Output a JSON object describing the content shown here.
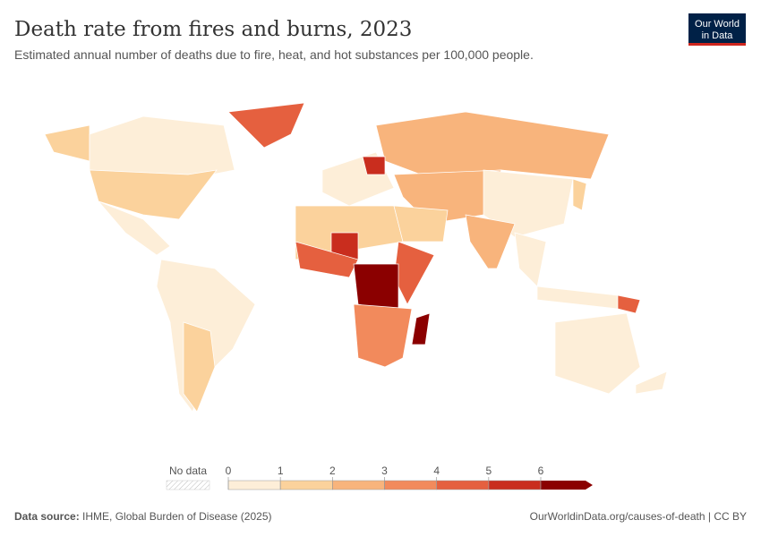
{
  "header": {
    "title": "Death rate from fires and burns, 2023",
    "subtitle": "Estimated annual number of deaths due to fire, heat, and hot substances per 100,000 people.",
    "logo": [
      "Our World",
      "in Data"
    ]
  },
  "legend": {
    "no_data_label": "No data",
    "ticks": [
      0,
      1,
      2,
      3,
      4,
      5,
      6
    ],
    "colors": [
      "#fdeed8",
      "#fbd29c",
      "#f8b47c",
      "#f28a5c",
      "#e5603f",
      "#c92d1e",
      "#8b0000"
    ]
  },
  "footer": {
    "source_label": "Data source:",
    "source": "IHME, Global Burden of Disease (2025)",
    "url": "OurWorldinData.org/causes-of-death | CC BY"
  }
}
